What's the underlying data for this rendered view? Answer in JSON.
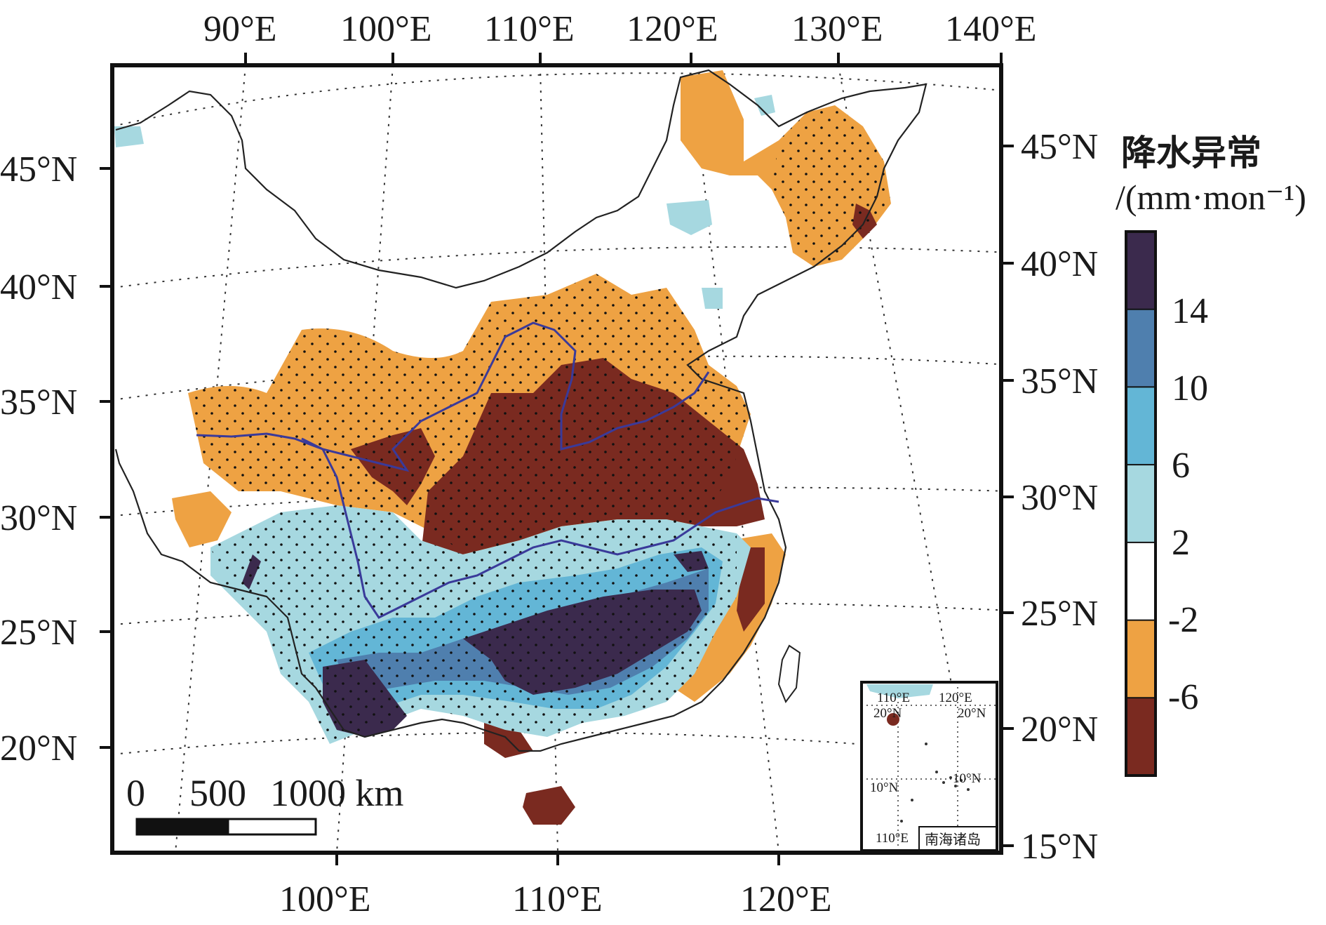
{
  "map": {
    "top_lon_labels": [
      "90°E",
      "100°E",
      "110°E",
      "120°E",
      "130°E",
      "140°E"
    ],
    "bottom_lon_labels": [
      "100°E",
      "110°E",
      "120°E"
    ],
    "left_lat_labels": [
      "45°N",
      "40°N",
      "35°N",
      "30°N",
      "25°N",
      "20°N"
    ],
    "right_lat_labels": [
      "45°N",
      "40°N",
      "35°N",
      "30°N",
      "25°N",
      "20°N",
      "15°N"
    ]
  },
  "legend": {
    "title": "降水异常",
    "unit": "/(mm·mon⁻¹)",
    "ticks": [
      "14",
      "10",
      "6",
      "2",
      "-2",
      "-6"
    ],
    "colors": [
      "#3b2a4d",
      "#4f7fae",
      "#63b6d6",
      "#a6d8e0",
      "#ffffff",
      "#eea243",
      "#7a2a20"
    ]
  },
  "scale_bar": {
    "labels": [
      "0",
      "500",
      "1000 km"
    ]
  },
  "inset": {
    "title": "南海诸岛",
    "lon_labels": [
      "110°E",
      "120°E",
      "110°E"
    ],
    "lat_labels": [
      "20°N",
      "20°N",
      "10°N",
      "10°N"
    ]
  },
  "colors": {
    "dry_strong": "#7a2a20",
    "dry": "#eea243",
    "wet_1": "#a6d8e0",
    "wet_2": "#63b6d6",
    "wet_3": "#4f7fae",
    "wet_strong": "#3b2a4d",
    "river": "#3a3a9a",
    "border": "#222222"
  }
}
